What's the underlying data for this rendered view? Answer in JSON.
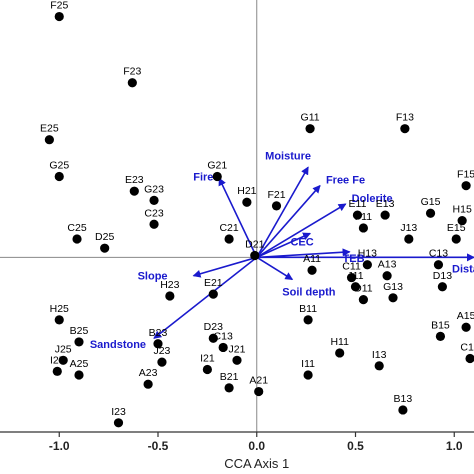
{
  "chart_data": {
    "type": "scatter",
    "subtype": "CCA biplot",
    "xlabel": "CCA Axis 1",
    "ylabel": "",
    "xlim": [
      -1.3,
      1.1
    ],
    "ylim": [
      -0.95,
      1.4
    ],
    "x_ticks": [
      "-1.0",
      "-0.5",
      "0.0",
      "0.5",
      "1.0"
    ],
    "reference_lines": {
      "x": 0,
      "y": 0
    },
    "colors": {
      "points": "#000000",
      "vectors": "#1a1acd",
      "reference_lines": "#888888"
    },
    "sites": [
      {
        "label": "F25",
        "x": -1.0,
        "y": 1.31
      },
      {
        "label": "F23",
        "x": -0.63,
        "y": 0.95
      },
      {
        "label": "E25",
        "x": -1.05,
        "y": 0.64
      },
      {
        "label": "G25",
        "x": -1.0,
        "y": 0.44
      },
      {
        "label": "E23",
        "x": -0.62,
        "y": 0.36
      },
      {
        "label": "G23",
        "x": -0.52,
        "y": 0.31
      },
      {
        "label": "C23",
        "x": -0.52,
        "y": 0.18
      },
      {
        "label": "C25",
        "x": -0.91,
        "y": 0.1
      },
      {
        "label": "D25",
        "x": -0.77,
        "y": 0.05
      },
      {
        "label": "G21",
        "x": -0.2,
        "y": 0.44
      },
      {
        "label": "H21",
        "x": -0.05,
        "y": 0.3
      },
      {
        "label": "F21",
        "x": 0.1,
        "y": 0.28
      },
      {
        "label": "C21",
        "x": -0.14,
        "y": 0.1
      },
      {
        "label": "D21",
        "x": -0.01,
        "y": 0.01
      },
      {
        "label": "H23",
        "x": -0.44,
        "y": -0.21
      },
      {
        "label": "E21",
        "x": -0.22,
        "y": -0.2
      },
      {
        "label": "H25",
        "x": -1.0,
        "y": -0.34
      },
      {
        "label": "B25",
        "x": -0.9,
        "y": -0.46
      },
      {
        "label": "J25",
        "x": -0.98,
        "y": -0.56
      },
      {
        "label": "I25",
        "x": -1.01,
        "y": -0.62
      },
      {
        "label": "A25",
        "x": -0.9,
        "y": -0.64
      },
      {
        "label": "B23",
        "x": -0.5,
        "y": -0.47
      },
      {
        "label": "J23",
        "x": -0.48,
        "y": -0.57
      },
      {
        "label": "D23",
        "x": -0.22,
        "y": -0.44
      },
      {
        "label": "C13",
        "x": -0.17,
        "y": -0.49
      },
      {
        "label": "J21",
        "x": -0.1,
        "y": -0.56
      },
      {
        "label": "I21",
        "x": -0.25,
        "y": -0.61
      },
      {
        "label": "B21",
        "x": -0.14,
        "y": -0.71
      },
      {
        "label": "A21",
        "x": 0.01,
        "y": -0.73
      },
      {
        "label": "A23",
        "x": -0.55,
        "y": -0.69
      },
      {
        "label": "I23",
        "x": -0.7,
        "y": -0.9
      },
      {
        "label": "G11",
        "x": 0.27,
        "y": 0.7
      },
      {
        "label": "F13",
        "x": 0.75,
        "y": 0.7
      },
      {
        "label": "E11",
        "x": 0.51,
        "y": 0.23
      },
      {
        "label": "F11",
        "x": 0.54,
        "y": 0.16
      },
      {
        "label": "E13",
        "x": 0.65,
        "y": 0.23
      },
      {
        "label": "G15",
        "x": 0.88,
        "y": 0.24
      },
      {
        "label": "H15",
        "x": 1.04,
        "y": 0.2
      },
      {
        "label": "F15",
        "x": 1.06,
        "y": 0.39
      },
      {
        "label": "E15",
        "x": 1.01,
        "y": 0.1
      },
      {
        "label": "J13",
        "x": 0.77,
        "y": 0.1
      },
      {
        "label": "H13",
        "x": 0.56,
        "y": -0.04
      },
      {
        "label": "C13",
        "x": 0.92,
        "y": -0.04
      },
      {
        "label": "A11",
        "x": 0.28,
        "y": -0.07
      },
      {
        "label": "C11",
        "x": 0.48,
        "y": -0.11
      },
      {
        "label": "J11",
        "x": 0.5,
        "y": -0.16
      },
      {
        "label": "A13",
        "x": 0.66,
        "y": -0.1
      },
      {
        "label": "G13",
        "x": 0.69,
        "y": -0.22
      },
      {
        "label": "D11",
        "x": 0.54,
        "y": -0.23
      },
      {
        "label": "D13",
        "x": 0.94,
        "y": -0.16
      },
      {
        "label": "B11",
        "x": 0.26,
        "y": -0.34
      },
      {
        "label": "A15",
        "x": 1.06,
        "y": -0.38
      },
      {
        "label": "B15",
        "x": 0.93,
        "y": -0.43
      },
      {
        "label": "H11",
        "x": 0.42,
        "y": -0.52
      },
      {
        "label": "I11",
        "x": 0.26,
        "y": -0.64
      },
      {
        "label": "I13",
        "x": 0.62,
        "y": -0.59
      },
      {
        "label": "B13",
        "x": 0.74,
        "y": -0.83
      },
      {
        "label": "C15",
        "x": 1.08,
        "y": -0.55
      }
    ],
    "vectors": [
      {
        "label": "Fire",
        "x": -0.19,
        "y": 0.43
      },
      {
        "label": "Moisture",
        "x": 0.26,
        "y": 0.49
      },
      {
        "label": "Free Fe",
        "x": 0.32,
        "y": 0.39
      },
      {
        "label": "Dolerite",
        "x": 0.45,
        "y": 0.29
      },
      {
        "label": "CEC",
        "x": 0.27,
        "y": 0.13
      },
      {
        "label": "TEB",
        "x": 0.47,
        "y": 0.03
      },
      {
        "label": "Distance",
        "x": 1.1,
        "y": 0.0
      },
      {
        "label": "Slope",
        "x": -0.32,
        "y": -0.1
      },
      {
        "label": "Soil depth",
        "x": 0.18,
        "y": -0.12
      },
      {
        "label": "Sandstone",
        "x": -0.52,
        "y": -0.44
      }
    ]
  }
}
